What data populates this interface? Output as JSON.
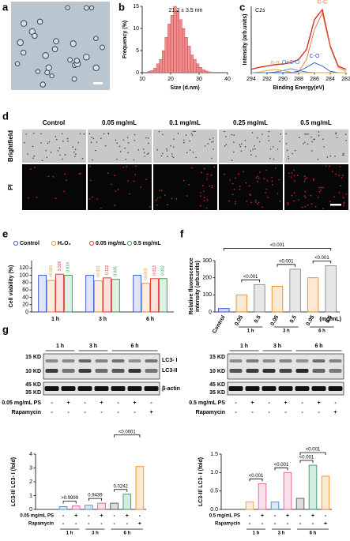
{
  "panels": [
    "a",
    "b",
    "c",
    "d",
    "e",
    "f",
    "g"
  ],
  "panel_d": {
    "columns": [
      "Control",
      "0.05 mg/mL",
      "0.1 mg/mL",
      "0.25 mg/mL",
      "0.5 mg/mL"
    ],
    "rows": [
      "Brightfield",
      "PI"
    ]
  },
  "panel_g_blots": [
    {
      "times": [
        "1 h",
        "3 h",
        "6 h"
      ],
      "markers": [
        "15 KD",
        "10 KD",
        "45 KD",
        "35 KD"
      ],
      "bands": [
        "LC3- I",
        "LC3-II",
        "β-actin"
      ],
      "treatments": [
        {
          "name": "0.05 mg/mL PS",
          "signs": [
            "-",
            "+",
            "-",
            "+",
            "-",
            "+",
            "-"
          ]
        },
        {
          "name": "Rapamycin",
          "signs": [
            "-",
            "-",
            "-",
            "-",
            "-",
            "-",
            "+"
          ]
        }
      ]
    },
    {
      "times": [
        "1 h",
        "3 h",
        "6 h"
      ],
      "markers": [
        "15 KD",
        "10 KD",
        "45 KD",
        "35 KD"
      ],
      "treatments": [
        {
          "name": "0.5 mg/mL PS",
          "signs": [
            "-",
            "+",
            "-",
            "+",
            "-",
            "+",
            "-"
          ]
        },
        {
          "name": "Rapamycin",
          "signs": [
            "-",
            "-",
            "-",
            "-",
            "-",
            "-",
            "+"
          ]
        }
      ]
    }
  ],
  "chart_data": [
    {
      "type": "histogram",
      "annotation": "21.2 ± 3.5 nm",
      "xlabel": "Size (d.nm)",
      "ylabel": "Frequency (%)",
      "bins": [
        12,
        13,
        14,
        15,
        16,
        17,
        18,
        19,
        20,
        21,
        22,
        23,
        24,
        25,
        26,
        27,
        28,
        29,
        30,
        31,
        32,
        33,
        34
      ],
      "values": [
        0.3,
        0.5,
        1,
        2,
        3,
        5,
        8,
        11,
        13,
        15,
        14,
        12,
        10,
        8,
        6,
        4,
        3,
        2,
        1.2,
        0.7,
        0.4,
        0.2
      ],
      "color": "#f08a8a",
      "xlim": [
        10,
        40
      ],
      "xticks": [
        10,
        20,
        30,
        40
      ],
      "ylim": [
        0,
        15
      ],
      "yticks": [
        0,
        5,
        10,
        15
      ]
    },
    {
      "type": "line",
      "title": "C1s",
      "xlabel": "Binding Energy(eV)",
      "ylabel": "Intensity (arb.units)",
      "x": [
        294,
        293,
        292,
        291,
        290,
        289,
        288,
        287,
        286,
        285,
        284,
        283,
        282
      ],
      "xlim": [
        294,
        282
      ],
      "xticks": [
        294,
        292,
        290,
        288,
        286,
        284,
        282
      ],
      "ylim": [
        0,
        1
      ],
      "series": [
        {
          "color": "#d42020",
          "values": [
            0.05,
            0.08,
            0.1,
            0.12,
            0.13,
            0.15,
            0.2,
            0.35,
            0.8,
            0.95,
            0.4,
            0.1,
            0.05
          ]
        },
        {
          "name": "C-C",
          "color": "#e0702a",
          "values": [
            0,
            0,
            0,
            0,
            0,
            0,
            0.02,
            0.2,
            0.65,
            0.9,
            0.38,
            0.08,
            0.02
          ]
        },
        {
          "name": "C-O",
          "color": "#2f4fc0",
          "values": [
            0,
            0,
            0,
            0,
            0,
            0,
            0.02,
            0.08,
            0.15,
            0.1,
            0.02,
            0,
            0
          ]
        },
        {
          "name": "O=C-O",
          "color": "#3a86d0",
          "values": [
            0,
            0,
            0,
            0.01,
            0.03,
            0.06,
            0.03,
            0.01,
            0,
            0,
            0,
            0,
            0
          ]
        },
        {
          "name": "π-π",
          "color": "#e0a020",
          "values": [
            0,
            0.01,
            0.03,
            0.05,
            0.03,
            0.01,
            0,
            0,
            0,
            0,
            0,
            0,
            0
          ]
        }
      ]
    },
    {
      "type": "grouped_bar",
      "ylabel": "Cell viability (%)",
      "categories": [
        "1 h",
        "3 h",
        "6 h"
      ],
      "ylim": [
        0,
        140
      ],
      "yticks": [
        0,
        20,
        40,
        60,
        80,
        100,
        120
      ],
      "series": [
        {
          "name": "Control",
          "color": "#3050c8",
          "values": [
            100,
            100,
            100
          ]
        },
        {
          "name": "H₂O₂",
          "color": "#f08a24",
          "values": [
            86,
            85,
            78
          ],
          "p_labels": [
            "<0.001",
            "<0.001",
            "<0.001"
          ]
        },
        {
          "name": "0.05 mg/mL",
          "color": "#e0302a",
          "values": [
            103,
            93,
            91
          ],
          "p_labels": [
            "0.326",
            "0.112",
            "0.013"
          ]
        },
        {
          "name": "0.5 mg/mL",
          "color": "#2a9a4a",
          "values": [
            100,
            89,
            91
          ],
          "p_labels": [
            "0.814",
            "0.005",
            "0.002"
          ]
        }
      ]
    },
    {
      "type": "bar",
      "ylabel": [
        "Relative fluorescence",
        "intensity (arb.units)"
      ],
      "categories": [
        "Control",
        "0.05",
        "0.5",
        "0.05",
        "0.5",
        "0.05",
        "0.5"
      ],
      "groups": [
        "1 h",
        "3 h",
        "6 h"
      ],
      "unit": "(mg/mL)",
      "values": [
        20,
        100,
        160,
        150,
        250,
        200,
        270
      ],
      "colors": [
        "#3050c8",
        "#f08a24",
        "#888888",
        "#f08a24",
        "#888888",
        "#f08a24",
        "#888888"
      ],
      "comparisons": [
        "<0.001",
        "<0.001",
        "<0.001",
        "<0.001"
      ],
      "ylim": [
        0,
        300
      ],
      "yticks": [
        0,
        100,
        200,
        300
      ]
    },
    {
      "type": "bar",
      "ylabel": "LC3-II/ LC3- I (fold)",
      "values": [
        0.2,
        0.25,
        0.3,
        0.45,
        0.45,
        1.1,
        3.1
      ],
      "colors": [
        "#4a8ad0",
        "#e060a0",
        "#4a8ad0",
        "#e060a0",
        "#555555",
        "#2aa060",
        "#f09020"
      ],
      "rows": [
        {
          "name": "0.05 mg/mL PS",
          "signs": [
            "-",
            "+",
            "-",
            "+",
            "-",
            "+",
            "-"
          ]
        },
        {
          "name": "Rapamycin",
          "signs": [
            "-",
            "-",
            "-",
            "-",
            "-",
            "-",
            "+"
          ]
        }
      ],
      "groups": [
        "1 h",
        "3 h",
        "6 h"
      ],
      "comparisons": [
        ">0.9999",
        "0.9439",
        "0.0242",
        "<0.0001"
      ],
      "ylim": [
        0,
        4
      ],
      "yticks": [
        0,
        1,
        2,
        3,
        4
      ]
    },
    {
      "type": "bar",
      "ylabel": "LC3-II/ LC3- I (fold)",
      "values": [
        0.2,
        0.7,
        0.2,
        1.0,
        0.3,
        1.2,
        0.9
      ],
      "colors": [
        "#f0a040",
        "#e060a0",
        "#4a8ad0",
        "#e060a0",
        "#555555",
        "#2aa060",
        "#f09020"
      ],
      "rows": [
        {
          "name": "0.5 mg/mL PS",
          "signs": [
            "-",
            "+",
            "-",
            "+",
            "-",
            "+",
            "-"
          ]
        },
        {
          "name": "Rapamycin",
          "signs": [
            "-",
            "-",
            "-",
            "-",
            "-",
            "-",
            "+"
          ]
        }
      ],
      "groups": [
        "1 h",
        "3 h",
        "6 h"
      ],
      "comparisons": [
        "<0.001",
        "<0.001",
        "<0.001",
        "<0.001"
      ],
      "ylim": [
        0,
        1.5
      ],
      "yticks": [
        {
          "value": 0,
          "label": "0.0"
        },
        {
          "value": 0.5,
          "label": "0.5"
        },
        {
          "value": 1,
          "label": "1.0"
        },
        {
          "value": 1.5,
          "label": "1.5"
        }
      ]
    }
  ]
}
